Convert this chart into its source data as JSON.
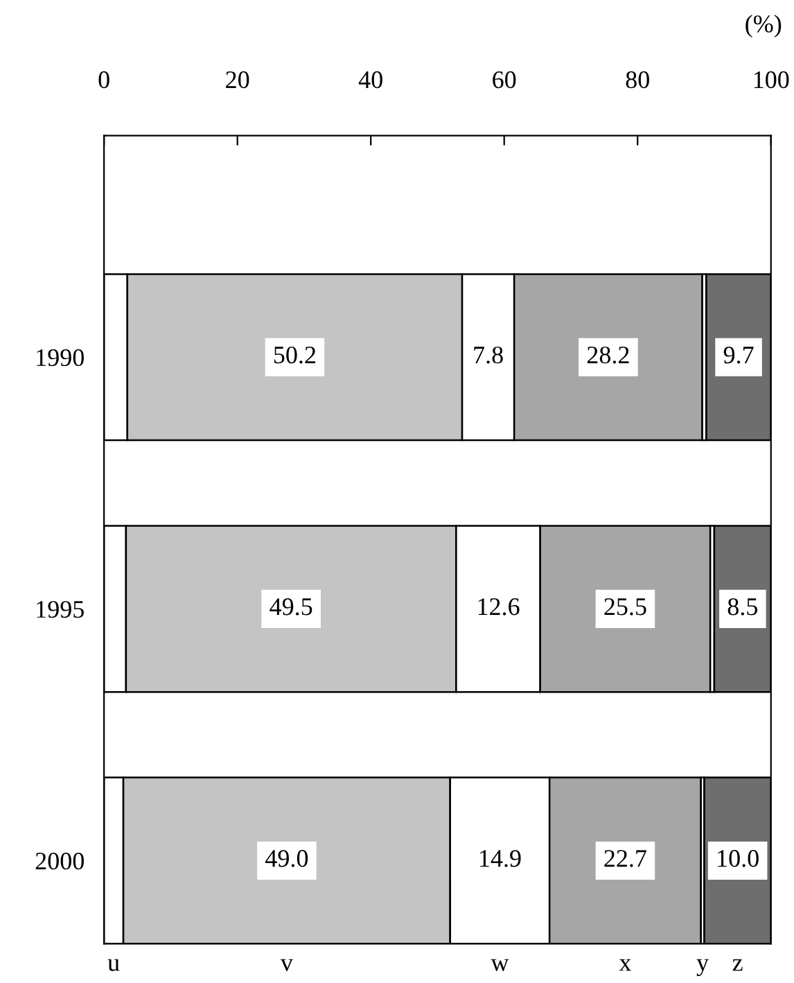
{
  "chart_data": {
    "type": "bar",
    "orientation": "horizontal",
    "stacked": true,
    "categories": [
      "1990",
      "1995",
      "2000"
    ],
    "xlabel": "(%)",
    "xlim": [
      0,
      100
    ],
    "xticks": [
      0,
      20,
      40,
      60,
      80,
      100
    ],
    "grid": false,
    "legend": false,
    "series": [
      {
        "name": "u",
        "color": "#ffffff",
        "values": [
          3.5,
          3.3,
          2.9
        ],
        "value_labels": [
          null,
          null,
          null
        ]
      },
      {
        "name": "v",
        "color": "#c4c4c4",
        "values": [
          50.2,
          49.5,
          49.0
        ],
        "value_labels": [
          "50.2",
          "49.5",
          "49.0"
        ]
      },
      {
        "name": "w",
        "color": "#ffffff",
        "values": [
          7.8,
          12.6,
          14.9
        ],
        "value_labels": [
          "7.8",
          "12.6",
          "14.9"
        ]
      },
      {
        "name": "x",
        "color": "#a6a6a6",
        "values": [
          28.2,
          25.5,
          22.7
        ],
        "value_labels": [
          "28.2",
          "25.5",
          "22.7"
        ]
      },
      {
        "name": "y",
        "color": "#ffffff",
        "values": [
          0.6,
          0.6,
          0.5
        ],
        "value_labels": [
          null,
          null,
          null
        ]
      },
      {
        "name": "z",
        "color": "#6e6e6e",
        "values": [
          9.7,
          8.5,
          10.0
        ],
        "value_labels": [
          "9.7",
          "8.5",
          "10.0"
        ]
      }
    ]
  }
}
